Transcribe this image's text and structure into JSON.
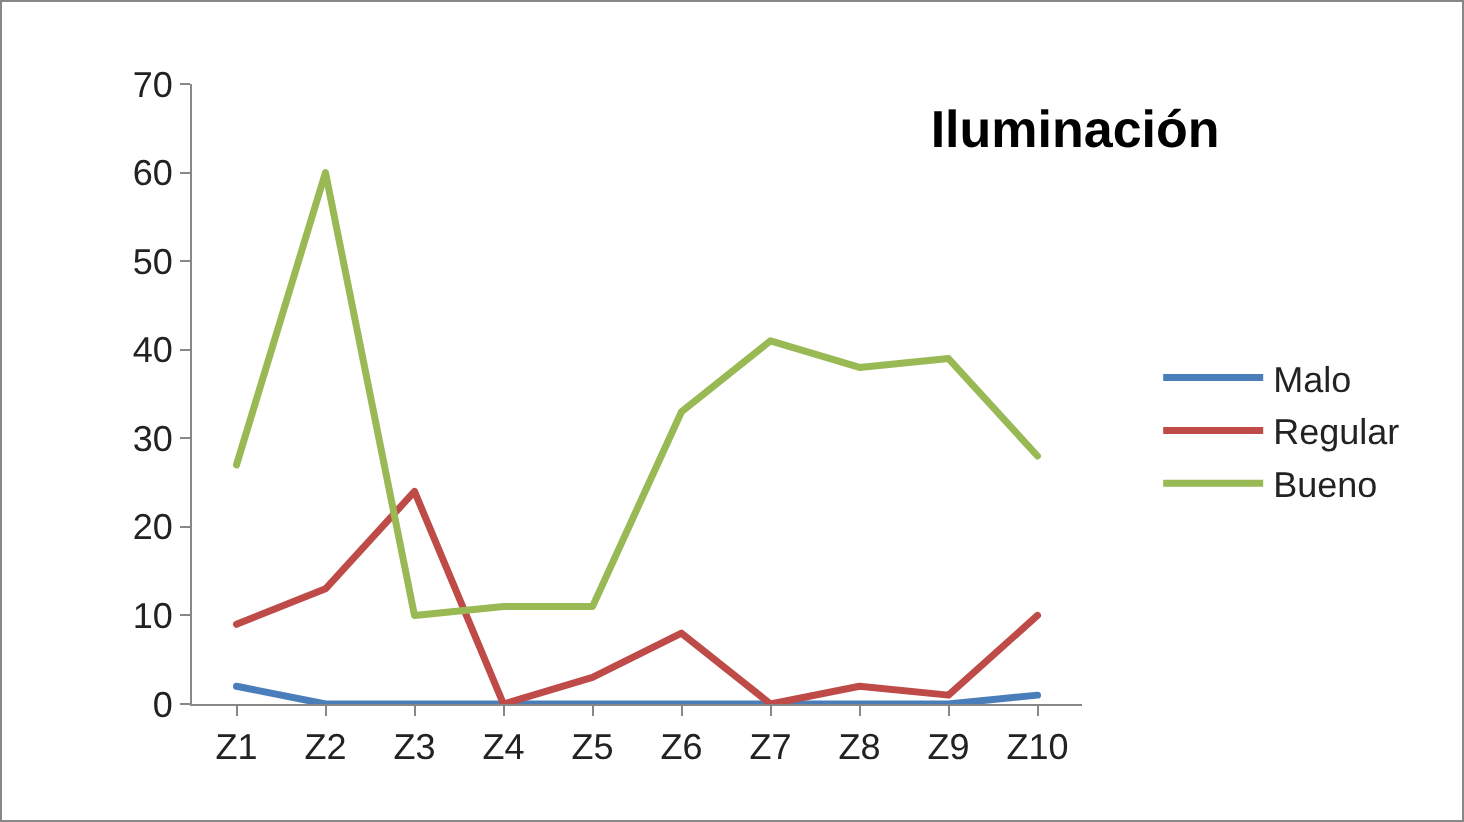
{
  "chart_data": {
    "type": "line",
    "title": "Iluminación",
    "categories": [
      "Z1",
      "Z2",
      "Z3",
      "Z4",
      "Z5",
      "Z6",
      "Z7",
      "Z8",
      "Z9",
      "Z10"
    ],
    "series": [
      {
        "name": "Malo",
        "color": "#4a7ebb",
        "values": [
          2,
          0,
          0,
          0,
          0,
          0,
          0,
          0,
          0,
          1
        ]
      },
      {
        "name": "Regular",
        "color": "#be4b48",
        "values": [
          9,
          13,
          24,
          0,
          3,
          8,
          0,
          2,
          1,
          10
        ]
      },
      {
        "name": "Bueno",
        "color": "#98b954",
        "values": [
          27,
          60,
          10,
          11,
          11,
          33,
          41,
          38,
          39,
          28
        ]
      }
    ],
    "ylim": [
      0,
      70
    ],
    "yticks": [
      0,
      10,
      20,
      30,
      40,
      50,
      60,
      70
    ],
    "grid": false,
    "legend": "right",
    "marker": "none",
    "line_style": "solid"
  }
}
